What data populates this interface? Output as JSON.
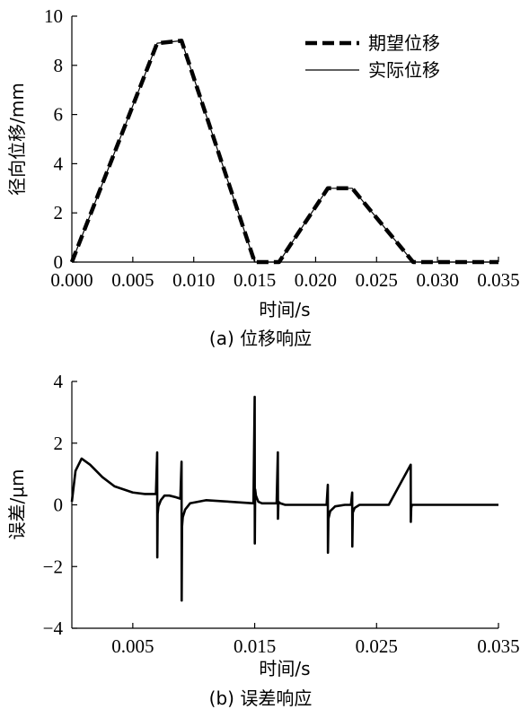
{
  "chart_data": [
    {
      "type": "line",
      "caption": "(a) 位移响应",
      "xlabel": "时间/s",
      "ylabel": "径向位移/mm",
      "xlim": [
        0,
        0.035
      ],
      "ylim": [
        0,
        10
      ],
      "x_ticks": [
        "0.000",
        "0.005",
        "0.010",
        "0.015",
        "0.020",
        "0.025",
        "0.030",
        "0.035"
      ],
      "y_ticks": [
        "0",
        "2",
        "4",
        "6",
        "8",
        "10"
      ],
      "grid": false,
      "legend_position": "top-right",
      "series": [
        {
          "name": "期望位移",
          "style": "dashed-thick",
          "color": "#000000",
          "x": [
            0,
            0.007,
            0.009,
            0.015,
            0.017,
            0.021,
            0.023,
            0.028,
            0.035
          ],
          "y": [
            0,
            8.9,
            9.0,
            0,
            0,
            3.0,
            3.0,
            0,
            0
          ]
        },
        {
          "name": "实际位移",
          "style": "solid-thin",
          "color": "#000000",
          "x": [
            0,
            0.007,
            0.009,
            0.015,
            0.017,
            0.021,
            0.023,
            0.028,
            0.035
          ],
          "y": [
            0,
            8.9,
            9.0,
            0,
            0,
            3.0,
            3.0,
            0,
            0
          ]
        }
      ]
    },
    {
      "type": "line",
      "caption": "(b) 误差响应",
      "xlabel": "时间/s",
      "ylabel": "误差/μm",
      "xlim": [
        0,
        0.035
      ],
      "ylim": [
        -4,
        4
      ],
      "x_ticks": [
        "0.005",
        "0.015",
        "0.025",
        "0.035"
      ],
      "y_ticks": [
        "4",
        "2",
        "0",
        "−2",
        "−4"
      ],
      "grid": false,
      "series": [
        {
          "color": "#000000",
          "x": [
            0,
            0.0003,
            0.0008,
            0.0015,
            0.0025,
            0.0035,
            0.005,
            0.006,
            0.0069,
            0.007,
            0.00701,
            0.00704,
            0.0071,
            0.0073,
            0.0076,
            0.008,
            0.0085,
            0.0089,
            0.009,
            0.00901,
            0.00904,
            0.0091,
            0.0093,
            0.0097,
            0.011,
            0.013,
            0.0149,
            0.015,
            0.01501,
            0.01504,
            0.0151,
            0.0153,
            0.0156,
            0.0162,
            0.0168,
            0.0169,
            0.01691,
            0.01695,
            0.0171,
            0.0175,
            0.018,
            0.0195,
            0.0209,
            0.021,
            0.02101,
            0.02105,
            0.0212,
            0.0216,
            0.0224,
            0.0229,
            0.023,
            0.02301,
            0.02305,
            0.0232,
            0.0236,
            0.026,
            0.0278,
            0.02781,
            0.02784,
            0.0279,
            0.0285,
            0.035
          ],
          "y": [
            0.1,
            1.1,
            1.5,
            1.3,
            0.9,
            0.6,
            0.4,
            0.35,
            0.35,
            1.7,
            -1.7,
            -0.3,
            -0.05,
            0.15,
            0.3,
            0.3,
            0.25,
            0.2,
            1.4,
            -3.1,
            -0.7,
            -0.4,
            -0.15,
            0.05,
            0.15,
            0.1,
            0.05,
            3.5,
            -1.25,
            0.5,
            0.3,
            0.1,
            0.05,
            0.05,
            0.05,
            1.7,
            -0.45,
            0.1,
            0.05,
            0.0,
            0.0,
            0.0,
            0.0,
            0.65,
            -1.55,
            -0.45,
            -0.2,
            -0.05,
            0.0,
            0.0,
            0.4,
            -1.35,
            -0.25,
            -0.1,
            0.0,
            0.0,
            1.3,
            -0.55,
            -0.1,
            0.0,
            0.0,
            0.0
          ]
        }
      ]
    }
  ],
  "legend": {
    "items": [
      {
        "label": "期望位移"
      },
      {
        "label": "实际位移"
      }
    ]
  }
}
